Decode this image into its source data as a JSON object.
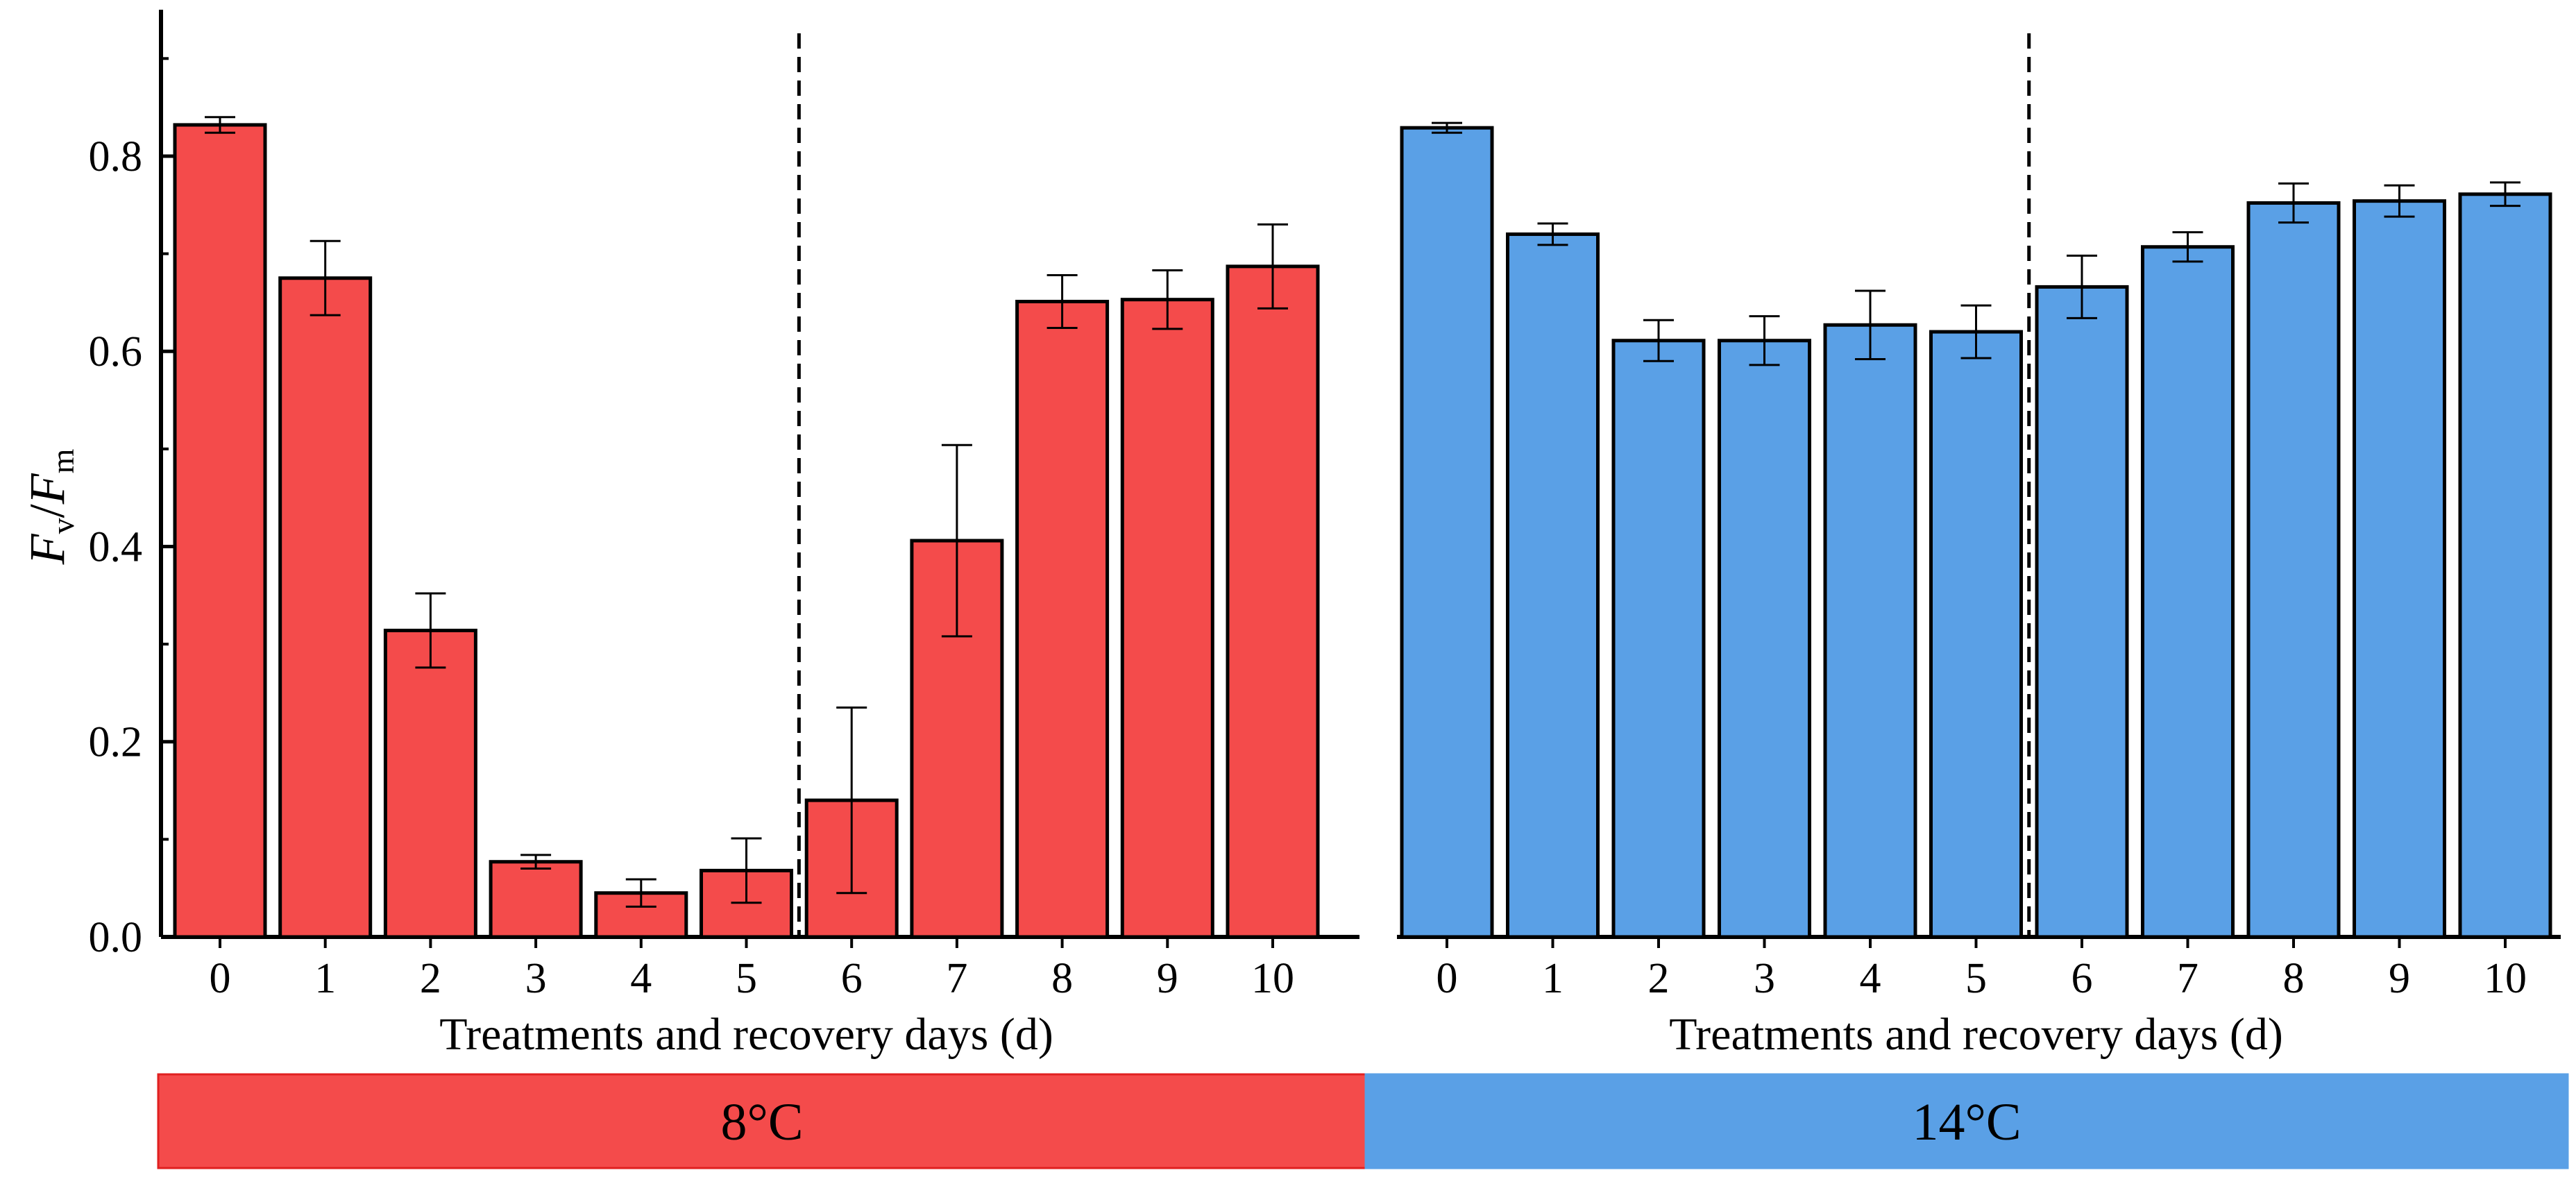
{
  "chart_data": {
    "type": "bar",
    "y_axis": {
      "label_main_1": "F",
      "label_sub_1": "v",
      "label_slash": "/",
      "label_main_2": "F",
      "label_sub_2": "m",
      "ylim": [
        0,
        0.95
      ],
      "ticks": [
        0.0,
        0.2,
        0.4,
        0.6,
        0.8
      ],
      "tick_labels": [
        "0.0",
        "0.2",
        "0.4",
        "0.6",
        "0.8"
      ]
    },
    "panels": [
      {
        "name": "8°C",
        "band_label": "8°C",
        "color": "#F44B4B",
        "xlabel": "Treatments and recovery days (d)",
        "categories": [
          "0",
          "1",
          "2",
          "3",
          "4",
          "5",
          "6",
          "7",
          "8",
          "9",
          "10"
        ],
        "values": [
          0.832,
          0.675,
          0.314,
          0.077,
          0.045,
          0.068,
          0.14,
          0.406,
          0.651,
          0.653,
          0.687
        ],
        "errors": [
          0.008,
          0.038,
          0.038,
          0.007,
          0.014,
          0.033,
          0.095,
          0.098,
          0.027,
          0.03,
          0.043
        ],
        "divider_after": "5"
      },
      {
        "name": "14°C",
        "band_label": "14°C",
        "color": "#5AA0E6",
        "xlabel": "Treatments and recovery days (d)",
        "categories": [
          "0",
          "1",
          "2",
          "3",
          "4",
          "5",
          "6",
          "7",
          "8",
          "9",
          "10"
        ],
        "values": [
          0.829,
          0.72,
          0.611,
          0.611,
          0.627,
          0.62,
          0.666,
          0.707,
          0.752,
          0.754,
          0.761
        ],
        "errors": [
          0.005,
          0.011,
          0.021,
          0.025,
          0.035,
          0.027,
          0.032,
          0.015,
          0.02,
          0.016,
          0.012
        ],
        "divider_after": "5"
      }
    ]
  }
}
